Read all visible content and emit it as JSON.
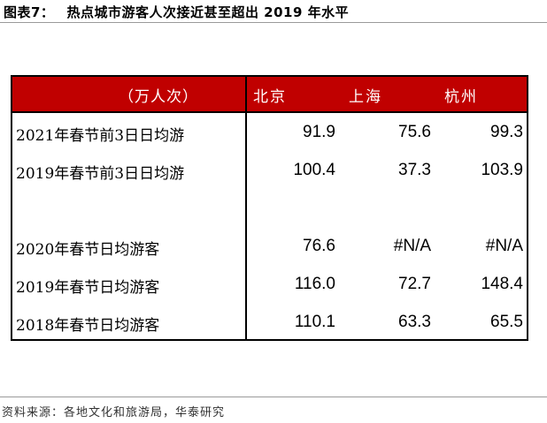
{
  "figure": {
    "label": "图表7：",
    "title": "热点城市游客人次接近甚至超出 2019 年水平"
  },
  "table": {
    "unit": "（万人次）",
    "columns": [
      "北京",
      "上海",
      "杭州"
    ],
    "rows": [
      {
        "label": "2021年春节前3日日均游",
        "values": [
          "91.9",
          "75.6",
          "99.3"
        ]
      },
      {
        "label": "2019年春节前3日日均游",
        "values": [
          "100.4",
          "37.3",
          "103.9"
        ]
      },
      {
        "label": "",
        "values": [
          "",
          "",
          ""
        ]
      },
      {
        "label": "2020年春节日均游客",
        "values": [
          "76.6",
          "#N/A",
          "#N/A"
        ]
      },
      {
        "label": "2019年春节日均游客",
        "values": [
          "116.0",
          "72.7",
          "148.4"
        ]
      },
      {
        "label": "2018年春节日均游客",
        "values": [
          "110.1",
          "63.3",
          "65.5"
        ]
      }
    ]
  },
  "source": "资料来源：各地文化和旅游局，华泰研究",
  "colors": {
    "header_bg": "#c00000",
    "header_text": "#ffffff"
  }
}
